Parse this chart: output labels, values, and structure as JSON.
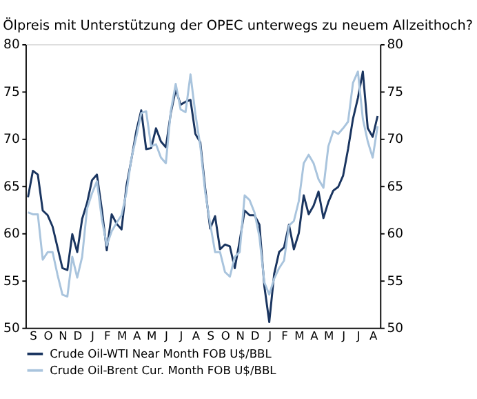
{
  "chart_data": {
    "type": "line",
    "title": "Ölpreis mit Unterstützung der OPEC unterwegs zu neuem Allzeithoch?",
    "categories": [
      null,
      "S",
      null,
      null,
      "O",
      null,
      null,
      "N",
      null,
      null,
      "D",
      null,
      null,
      "J",
      null,
      null,
      "F",
      null,
      null,
      "M",
      null,
      null,
      "A",
      null,
      null,
      "M",
      null,
      null,
      "J",
      null,
      null,
      "J",
      null,
      null,
      "A",
      null,
      null,
      "S",
      null,
      null,
      "O",
      null,
      null,
      "N",
      null,
      null,
      "D",
      null,
      null,
      "J",
      null,
      null,
      "F",
      null,
      null,
      "M",
      null,
      null,
      "A",
      null,
      null,
      "M",
      null,
      null,
      "J",
      null,
      null,
      "J",
      null,
      null,
      "A",
      null
    ],
    "ylim": [
      50,
      80
    ],
    "yticks": [
      50,
      55,
      60,
      65,
      70,
      75,
      80
    ],
    "y2lim": [
      50,
      80
    ],
    "y2ticks": [
      50,
      55,
      60,
      65,
      70,
      75,
      80
    ],
    "grid": false,
    "legend": "bottom",
    "marker": "none",
    "line_style": "solid",
    "series": [
      {
        "name": "Crude Oil-WTI Near Month FOB U$/BBL",
        "color": "#1a3560",
        "values": [
          63.8,
          66.6,
          66.2,
          62.4,
          61.9,
          60.7,
          58.5,
          56.3,
          56.1,
          59.9,
          58.0,
          61.5,
          63.2,
          65.6,
          66.2,
          62.5,
          58.2,
          62.0,
          61.0,
          60.4,
          65.0,
          67.8,
          70.8,
          73.0,
          68.9,
          69.0,
          71.1,
          69.7,
          69.1,
          72.7,
          75.2,
          73.6,
          73.9,
          74.1,
          70.5,
          69.6,
          64.7,
          60.5,
          61.8,
          58.3,
          58.8,
          58.6,
          56.3,
          59.2,
          62.4,
          61.9,
          61.9,
          60.9,
          54.4,
          50.6,
          55.7,
          58.0,
          58.5,
          60.9,
          58.3,
          60.0,
          64.0,
          62.0,
          62.9,
          64.4,
          61.6,
          63.3,
          64.5,
          64.9,
          66.1,
          68.9,
          72.1,
          74.3,
          77.1,
          71.1,
          70.2,
          72.4
        ]
      },
      {
        "name": "Crude Oil-Brent Cur. Month FOB U$/BBL",
        "color": "#a9c4dd",
        "values": [
          62.2,
          62.0,
          62.0,
          57.2,
          58.0,
          58.0,
          55.6,
          53.5,
          53.3,
          57.5,
          55.3,
          57.5,
          62.6,
          64.2,
          65.5,
          61.5,
          58.7,
          60.2,
          61.1,
          61.9,
          64.3,
          67.9,
          70.2,
          72.7,
          72.9,
          69.2,
          69.4,
          68.0,
          67.4,
          72.9,
          75.8,
          73.1,
          72.8,
          76.8,
          72.6,
          69.2,
          64.3,
          61.0,
          58.0,
          58.0,
          55.9,
          55.4,
          57.5,
          58.0,
          64.0,
          63.5,
          62.2,
          59.6,
          54.8,
          53.5,
          55.2,
          56.3,
          57.1,
          60.8,
          61.3,
          63.4,
          67.4,
          68.3,
          67.4,
          65.7,
          64.8,
          69.2,
          70.8,
          70.5,
          71.1,
          71.8,
          75.9,
          77.1,
          72.1,
          69.7,
          68.0,
          71.3
        ]
      }
    ]
  }
}
